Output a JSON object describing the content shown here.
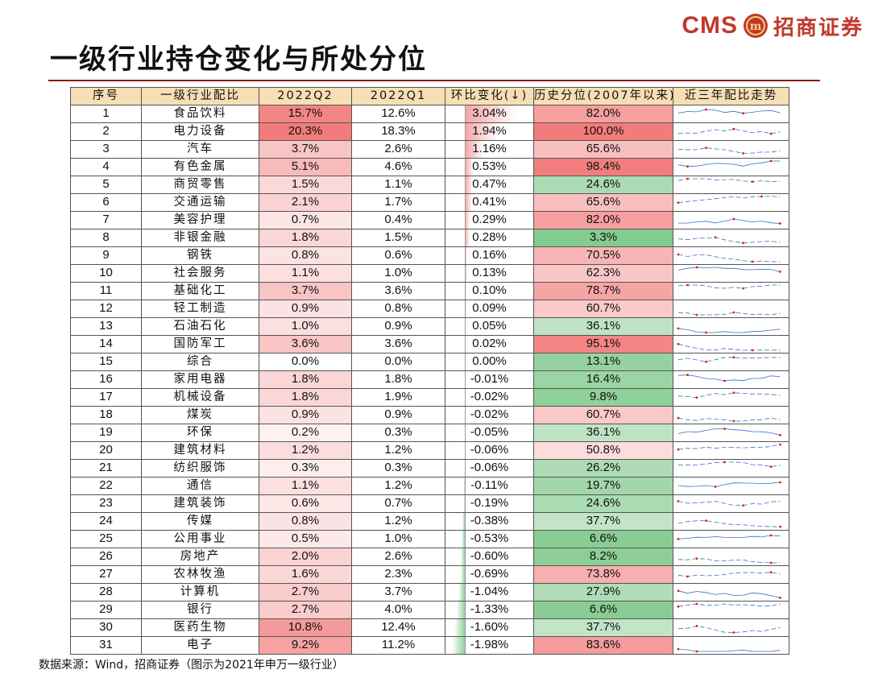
{
  "logo": {
    "cms": "CMS",
    "mark_text": "m",
    "company": "招商证券",
    "brand_color": "#c0392b"
  },
  "title": "一级行业持仓变化与所处分位",
  "table": {
    "headers": [
      "序号",
      "一级行业配比",
      "2022Q2",
      "2022Q1",
      "环比变化(↓)",
      "历史分位(2007年以来)",
      "近三年配比走势"
    ],
    "rows": [
      {
        "idx": "1",
        "industry": "食品饮料",
        "q2": "15.7%",
        "q1": "12.6%",
        "change": "3.04%",
        "pct": "82.0%"
      },
      {
        "idx": "2",
        "industry": "电力设备",
        "q2": "20.3%",
        "q1": "18.3%",
        "change": "1.94%",
        "pct": "100.0%"
      },
      {
        "idx": "3",
        "industry": "汽车",
        "q2": "3.7%",
        "q1": "2.6%",
        "change": "1.16%",
        "pct": "65.6%"
      },
      {
        "idx": "4",
        "industry": "有色金属",
        "q2": "5.1%",
        "q1": "4.6%",
        "change": "0.53%",
        "pct": "98.4%"
      },
      {
        "idx": "5",
        "industry": "商贸零售",
        "q2": "1.5%",
        "q1": "1.1%",
        "change": "0.47%",
        "pct": "24.6%"
      },
      {
        "idx": "6",
        "industry": "交通运输",
        "q2": "2.1%",
        "q1": "1.7%",
        "change": "0.41%",
        "pct": "65.6%"
      },
      {
        "idx": "7",
        "industry": "美容护理",
        "q2": "0.7%",
        "q1": "0.4%",
        "change": "0.29%",
        "pct": "82.0%"
      },
      {
        "idx": "8",
        "industry": "非银金融",
        "q2": "1.8%",
        "q1": "1.5%",
        "change": "0.28%",
        "pct": "3.3%"
      },
      {
        "idx": "9",
        "industry": "钢铁",
        "q2": "0.8%",
        "q1": "0.6%",
        "change": "0.16%",
        "pct": "70.5%"
      },
      {
        "idx": "10",
        "industry": "社会服务",
        "q2": "1.1%",
        "q1": "1.0%",
        "change": "0.13%",
        "pct": "62.3%"
      },
      {
        "idx": "11",
        "industry": "基础化工",
        "q2": "3.7%",
        "q1": "3.6%",
        "change": "0.10%",
        "pct": "78.7%"
      },
      {
        "idx": "12",
        "industry": "轻工制造",
        "q2": "0.9%",
        "q1": "0.8%",
        "change": "0.09%",
        "pct": "60.7%"
      },
      {
        "idx": "13",
        "industry": "石油石化",
        "q2": "1.0%",
        "q1": "0.9%",
        "change": "0.05%",
        "pct": "36.1%"
      },
      {
        "idx": "14",
        "industry": "国防军工",
        "q2": "3.6%",
        "q1": "3.6%",
        "change": "0.02%",
        "pct": "95.1%"
      },
      {
        "idx": "15",
        "industry": "综合",
        "q2": "0.0%",
        "q1": "0.0%",
        "change": "0.00%",
        "pct": "13.1%"
      },
      {
        "idx": "16",
        "industry": "家用电器",
        "q2": "1.8%",
        "q1": "1.8%",
        "change": "-0.01%",
        "pct": "16.4%"
      },
      {
        "idx": "17",
        "industry": "机械设备",
        "q2": "1.8%",
        "q1": "1.9%",
        "change": "-0.02%",
        "pct": "9.8%"
      },
      {
        "idx": "18",
        "industry": "煤炭",
        "q2": "0.9%",
        "q1": "0.9%",
        "change": "-0.02%",
        "pct": "60.7%"
      },
      {
        "idx": "19",
        "industry": "环保",
        "q2": "0.2%",
        "q1": "0.3%",
        "change": "-0.05%",
        "pct": "36.1%"
      },
      {
        "idx": "20",
        "industry": "建筑材料",
        "q2": "1.2%",
        "q1": "1.2%",
        "change": "-0.06%",
        "pct": "50.8%"
      },
      {
        "idx": "21",
        "industry": "纺织服饰",
        "q2": "0.3%",
        "q1": "0.3%",
        "change": "-0.06%",
        "pct": "26.2%"
      },
      {
        "idx": "22",
        "industry": "通信",
        "q2": "1.1%",
        "q1": "1.2%",
        "change": "-0.11%",
        "pct": "19.7%"
      },
      {
        "idx": "23",
        "industry": "建筑装饰",
        "q2": "0.6%",
        "q1": "0.7%",
        "change": "-0.19%",
        "pct": "24.6%"
      },
      {
        "idx": "24",
        "industry": "传媒",
        "q2": "0.8%",
        "q1": "1.2%",
        "change": "-0.38%",
        "pct": "37.7%"
      },
      {
        "idx": "25",
        "industry": "公用事业",
        "q2": "0.5%",
        "q1": "1.0%",
        "change": "-0.53%",
        "pct": "6.6%"
      },
      {
        "idx": "26",
        "industry": "房地产",
        "q2": "2.0%",
        "q1": "2.6%",
        "change": "-0.60%",
        "pct": "8.2%"
      },
      {
        "idx": "27",
        "industry": "农林牧渔",
        "q2": "1.6%",
        "q1": "2.3%",
        "change": "-0.69%",
        "pct": "73.8%"
      },
      {
        "idx": "28",
        "industry": "计算机",
        "q2": "2.7%",
        "q1": "3.7%",
        "change": "-1.04%",
        "pct": "27.9%"
      },
      {
        "idx": "29",
        "industry": "银行",
        "q2": "2.7%",
        "q1": "4.0%",
        "change": "-1.33%",
        "pct": "6.6%"
      },
      {
        "idx": "30",
        "industry": "医药生物",
        "q2": "10.8%",
        "q1": "12.4%",
        "change": "-1.60%",
        "pct": "37.7%"
      },
      {
        "idx": "31",
        "industry": "电子",
        "q2": "9.2%",
        "q1": "11.2%",
        "change": "-1.98%",
        "pct": "83.6%"
      }
    ]
  },
  "colors": {
    "header_bg": "#f6deb5",
    "high": "#f27b7b",
    "low": "#7ec889",
    "pos_bar": "#f4a3a3",
    "neg_bar": "#8fd19a",
    "sparkline": "#3a6fc4",
    "marker": "#e21d1d",
    "title_rule": "#8b1a1a"
  },
  "source": "数据来源：Wind，招商证券（图示为2021年申万一级行业）"
}
